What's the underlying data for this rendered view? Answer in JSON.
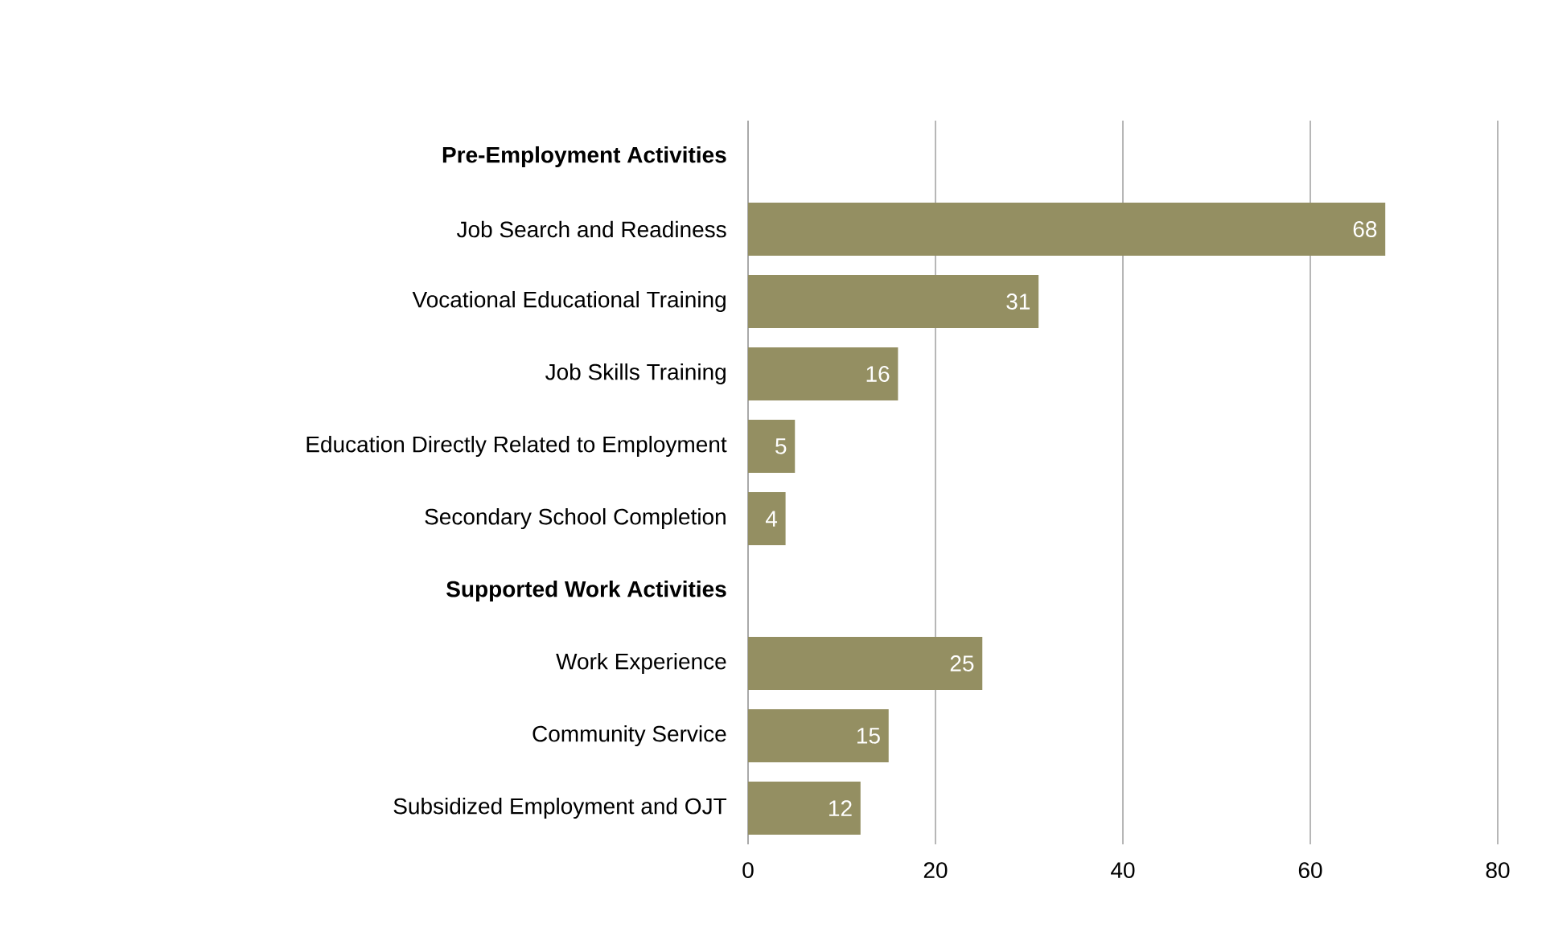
{
  "chart_data": {
    "type": "bar",
    "orientation": "horizontal",
    "categories": [
      "Pre-Employment Activities",
      "Job Search and Readiness",
      "Vocational Educational Training",
      "Job Skills Training",
      "Education Directly Related to Employment",
      "Secondary School Completion",
      "Supported Work Activities",
      "Work Experience",
      "Community Service",
      "Subsidized Employment and OJT"
    ],
    "values": [
      null,
      68,
      31,
      16,
      5,
      4,
      null,
      25,
      15,
      12
    ],
    "color": "#948f62",
    "data_labels": true,
    "grid": "x",
    "xlim": [
      0,
      80
    ],
    "xticks": [
      0,
      20,
      40,
      60,
      80
    ]
  }
}
